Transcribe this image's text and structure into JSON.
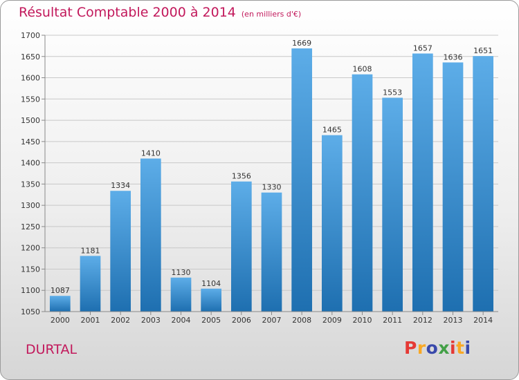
{
  "title": "Résultat Comptable 2000 à 2014",
  "unit_note": "(en milliers d'€)",
  "place": "DURTAL",
  "logo": {
    "letters": [
      "P",
      "r",
      "o",
      "x",
      "i",
      "t",
      "i"
    ],
    "colors": [
      "#e53935",
      "#f9a825",
      "#3949ab",
      "#43a047",
      "#e53935",
      "#f9a825",
      "#3949ab"
    ]
  },
  "colors": {
    "bar_top": "#5dade8",
    "bar_bottom": "#1e6fb0",
    "title": "#c2185b"
  },
  "chart_data": {
    "type": "bar",
    "categories": [
      "2000",
      "2001",
      "2002",
      "2003",
      "2004",
      "2005",
      "2006",
      "2007",
      "2008",
      "2009",
      "2010",
      "2011",
      "2012",
      "2013",
      "2014"
    ],
    "values": [
      1087,
      1181,
      1334,
      1410,
      1130,
      1104,
      1356,
      1330,
      1669,
      1465,
      1608,
      1553,
      1657,
      1636,
      1651
    ],
    "ylim": [
      1050,
      1700
    ],
    "yticks": [
      1050,
      1100,
      1150,
      1200,
      1250,
      1300,
      1350,
      1400,
      1450,
      1500,
      1550,
      1600,
      1650,
      1700
    ],
    "grid": true
  }
}
